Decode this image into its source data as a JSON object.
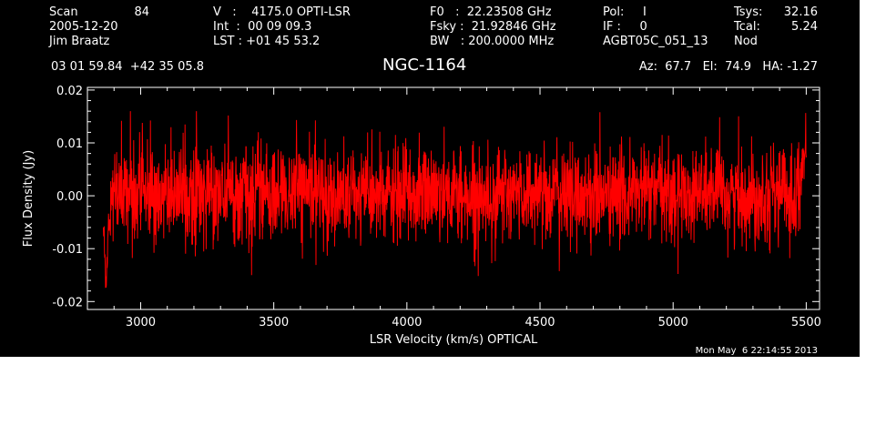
{
  "header": {
    "col1": {
      "scan_label": "Scan",
      "scan_value": "84",
      "date": "2005-12-20",
      "observer": "Jim Braatz"
    },
    "col2": {
      "v_line": "V   :    4175.0 OPTI-LSR",
      "int_line": "Int  :  00 09 09.3",
      "lst_line": "LST : +01 45 53.2"
    },
    "col3": {
      "f0_line": "F0   :  22.23508 GHz",
      "fsky_line": "Fsky :  21.92846 GHz",
      "bw_line": "BW   : 200.0000 MHz"
    },
    "col4": {
      "pol_line": "Pol:     I",
      "if_line": "IF :     0",
      "project": "AGBT05C_051_13"
    },
    "col5": {
      "tsys_label": "Tsys:",
      "tsys_value": "32.16",
      "tcal_label": "Tcal:",
      "tcal_value": "5.24",
      "mode": "Nod"
    },
    "coords": "03 01 59.84  +42 35 05.8",
    "source": "NGC-1164",
    "pointing": "Az:  67.7   El:  74.9   HA: -1.27",
    "timestamp": "Mon May  6 22:14:55 2013"
  },
  "colors": {
    "background": "#000000",
    "axes": "#ffffff",
    "trace": "#ff0000",
    "page": "#ffffff"
  },
  "chart_data": {
    "type": "line",
    "title": "NGC-1164",
    "xlabel": "LSR Velocity (km/s) OPTICAL",
    "ylabel": "Flux Density (Jy)",
    "xlim": [
      2800,
      5550
    ],
    "ylim": [
      -0.0215,
      0.0205
    ],
    "xticks": [
      3000,
      3500,
      4000,
      4500,
      5000,
      5500
    ],
    "xtick_labels": [
      "3000",
      "3500",
      "4000",
      "4500",
      "5000",
      "5500"
    ],
    "yticks": [
      -0.02,
      -0.01,
      0.0,
      0.01,
      0.02
    ],
    "ytick_labels": [
      "-0.02",
      "-0.01",
      "0.00",
      "0.01",
      "0.02"
    ],
    "series": [
      {
        "x": [
          2860,
          2870,
          2880,
          2900,
          2950,
          3000,
          3100,
          3200,
          3300,
          3400,
          3500,
          3600,
          3700,
          3800,
          3900,
          4000,
          4100,
          4200,
          4300,
          4400,
          4500,
          4600,
          4700,
          4800,
          4900,
          5000,
          5100,
          5200,
          5300,
          5400,
          5450,
          5500
        ],
        "y": [
          -0.004,
          -0.018,
          -0.006,
          0.001,
          0.0,
          0.001,
          0.0,
          0.0,
          0.001,
          0.0,
          0.0,
          0.001,
          0.0,
          0.0,
          0.0,
          0.0,
          0.001,
          0.0,
          0.0,
          0.0,
          0.001,
          0.0,
          0.0,
          0.0,
          0.001,
          0.0,
          0.001,
          0.0,
          0.0,
          0.001,
          0.0,
          0.007
        ],
        "noise_rms": 0.0045,
        "noise_peak": 0.016
      }
    ]
  }
}
